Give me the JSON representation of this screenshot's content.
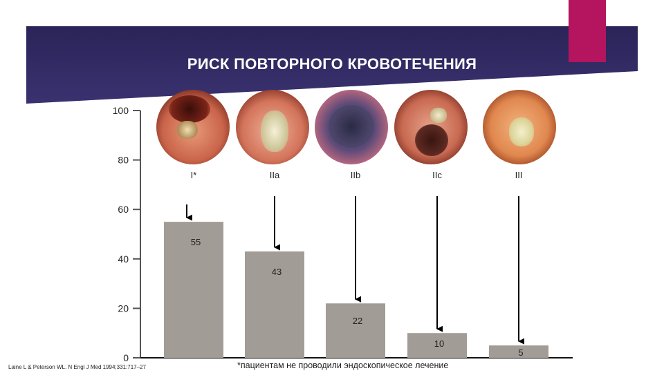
{
  "chart_data": {
    "type": "bar",
    "title": "РИСК ПОВТОРНОГО КРОВОТЕЧЕНИЯ",
    "categories": [
      "I*",
      "IIa",
      "IIb",
      "IIc",
      "III"
    ],
    "values": [
      55,
      43,
      22,
      10,
      5
    ],
    "data_labels": [
      "55",
      "43",
      "22",
      "10",
      "5"
    ],
    "ylim": [
      0,
      100
    ],
    "yticks": [
      "0",
      "20",
      "40",
      "60",
      "80",
      "100"
    ],
    "bar_color": "#a29c96",
    "grid": false,
    "legend": "none"
  },
  "images": [
    {
      "name": "endoscopy-image-i",
      "icon": "endoscopy-photo"
    },
    {
      "name": "endoscopy-image-iia",
      "icon": "endoscopy-photo"
    },
    {
      "name": "endoscopy-image-iib",
      "icon": "endoscopy-photo"
    },
    {
      "name": "endoscopy-image-iic",
      "icon": "endoscopy-photo"
    },
    {
      "name": "endoscopy-image-iii",
      "icon": "endoscopy-photo"
    }
  ],
  "citation": "Laine L & Peterson WL. N Engl J Med 1994;331:717–27",
  "footnote": "*пациентам не проводили эндоскопическое лечение",
  "colors": {
    "header": "#2a2458",
    "accent": "#b5155e",
    "bars": "#a29c96",
    "text": "#222222"
  }
}
